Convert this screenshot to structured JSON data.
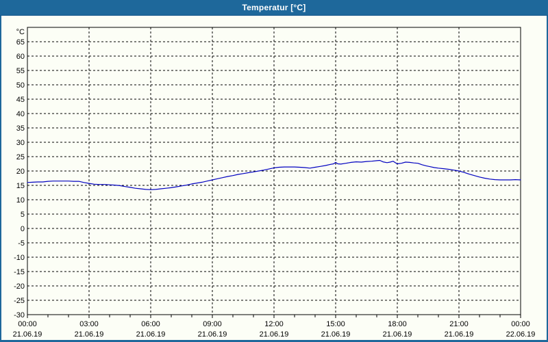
{
  "window": {
    "title": "Temperatur [°C]",
    "titlebar_color": "#1E689B",
    "background_color": "#FCFEF6"
  },
  "chart_data": {
    "type": "line",
    "title": "Temperatur [°C]",
    "ylabel": "°C",
    "ylim": [
      -30,
      70
    ],
    "ytick_step": 5,
    "ytick_labels": [
      "65",
      "60",
      "55",
      "50",
      "45",
      "40",
      "35",
      "30",
      "25",
      "20",
      "15",
      "10",
      "5",
      "0",
      "-5",
      "-10",
      "-15",
      "-20",
      "-25",
      "-30"
    ],
    "grid": "dashed black, horizontal every 5 deg, vertical every 3 h, minor x-ticks hourly",
    "legend_position": "none",
    "x_major_ticks": [
      {
        "hour": 0,
        "time": "00:00",
        "date": "21.06.19"
      },
      {
        "hour": 3,
        "time": "03:00",
        "date": "21.06.19"
      },
      {
        "hour": 6,
        "time": "06:00",
        "date": "21.06.19"
      },
      {
        "hour": 9,
        "time": "09:00",
        "date": "21.06.19"
      },
      {
        "hour": 12,
        "time": "12:00",
        "date": "21.06.19"
      },
      {
        "hour": 15,
        "time": "15:00",
        "date": "21.06.19"
      },
      {
        "hour": 18,
        "time": "18:00",
        "date": "21.06.19"
      },
      {
        "hour": 21,
        "time": "21:00",
        "date": "21.06.19"
      },
      {
        "hour": 24,
        "time": "00:00",
        "date": "22.06.19"
      }
    ],
    "series": [
      {
        "name": "Temperatur",
        "color": "#0000C0",
        "points": [
          [
            0,
            16.0
          ],
          [
            0.25,
            16.1
          ],
          [
            0.5,
            16.2
          ],
          [
            0.75,
            16.2
          ],
          [
            1,
            16.4
          ],
          [
            1.25,
            16.5
          ],
          [
            1.5,
            16.5
          ],
          [
            1.75,
            16.5
          ],
          [
            2,
            16.5
          ],
          [
            2.25,
            16.4
          ],
          [
            2.5,
            16.4
          ],
          [
            2.75,
            16.0
          ],
          [
            3,
            15.7
          ],
          [
            3.25,
            15.4
          ],
          [
            3.5,
            15.3
          ],
          [
            3.75,
            15.3
          ],
          [
            4,
            15.2
          ],
          [
            4.25,
            15.1
          ],
          [
            4.5,
            14.9
          ],
          [
            4.75,
            14.6
          ],
          [
            5,
            14.3
          ],
          [
            5.25,
            14.0
          ],
          [
            5.5,
            13.8
          ],
          [
            5.75,
            13.6
          ],
          [
            6,
            13.5
          ],
          [
            6.25,
            13.6
          ],
          [
            6.5,
            13.8
          ],
          [
            6.75,
            14.0
          ],
          [
            7,
            14.2
          ],
          [
            7.25,
            14.5
          ],
          [
            7.5,
            14.8
          ],
          [
            7.75,
            15.1
          ],
          [
            8,
            15.5
          ],
          [
            8.25,
            15.8
          ],
          [
            8.5,
            16.1
          ],
          [
            8.75,
            16.5
          ],
          [
            9,
            16.9
          ],
          [
            9.25,
            17.3
          ],
          [
            9.5,
            17.7
          ],
          [
            9.75,
            18.1
          ],
          [
            10,
            18.4
          ],
          [
            10.25,
            18.8
          ],
          [
            10.5,
            19.1
          ],
          [
            10.75,
            19.4
          ],
          [
            11,
            19.7
          ],
          [
            11.25,
            20.0
          ],
          [
            11.5,
            20.3
          ],
          [
            11.75,
            20.7
          ],
          [
            12,
            21.1
          ],
          [
            12.25,
            21.3
          ],
          [
            12.5,
            21.4
          ],
          [
            12.75,
            21.4
          ],
          [
            13,
            21.4
          ],
          [
            13.25,
            21.3
          ],
          [
            13.5,
            21.2
          ],
          [
            13.75,
            21.0
          ],
          [
            14,
            21.3
          ],
          [
            14.25,
            21.6
          ],
          [
            14.5,
            21.9
          ],
          [
            14.75,
            22.3
          ],
          [
            14.9,
            22.5
          ],
          [
            15,
            23.0
          ],
          [
            15.1,
            22.5
          ],
          [
            15.25,
            22.4
          ],
          [
            15.5,
            22.7
          ],
          [
            15.75,
            23.0
          ],
          [
            16,
            23.2
          ],
          [
            16.25,
            23.1
          ],
          [
            16.5,
            23.3
          ],
          [
            16.75,
            23.4
          ],
          [
            17,
            23.6
          ],
          [
            17.15,
            23.7
          ],
          [
            17.3,
            23.2
          ],
          [
            17.5,
            22.9
          ],
          [
            17.65,
            23.1
          ],
          [
            17.8,
            23.4
          ],
          [
            17.9,
            22.9
          ],
          [
            18,
            22.5
          ],
          [
            18.2,
            22.7
          ],
          [
            18.4,
            23.1
          ],
          [
            18.6,
            23.0
          ],
          [
            18.8,
            22.8
          ],
          [
            19,
            22.7
          ],
          [
            19.2,
            22.2
          ],
          [
            19.4,
            21.8
          ],
          [
            19.6,
            21.5
          ],
          [
            19.8,
            21.2
          ],
          [
            20,
            21.0
          ],
          [
            20.25,
            20.8
          ],
          [
            20.5,
            20.6
          ],
          [
            20.75,
            20.3
          ],
          [
            21,
            20.0
          ],
          [
            21.25,
            19.5
          ],
          [
            21.5,
            18.9
          ],
          [
            21.75,
            18.4
          ],
          [
            22,
            17.9
          ],
          [
            22.25,
            17.5
          ],
          [
            22.5,
            17.2
          ],
          [
            22.75,
            17.0
          ],
          [
            23,
            16.9
          ],
          [
            23.25,
            16.9
          ],
          [
            23.5,
            16.9
          ],
          [
            23.75,
            17.0
          ],
          [
            24,
            16.9
          ]
        ]
      }
    ]
  },
  "colors": {
    "grid": "#000000",
    "axis": "#000000",
    "line": "#0000C0",
    "frame": "#1E689B",
    "plot_background": "#FCFEF6"
  }
}
